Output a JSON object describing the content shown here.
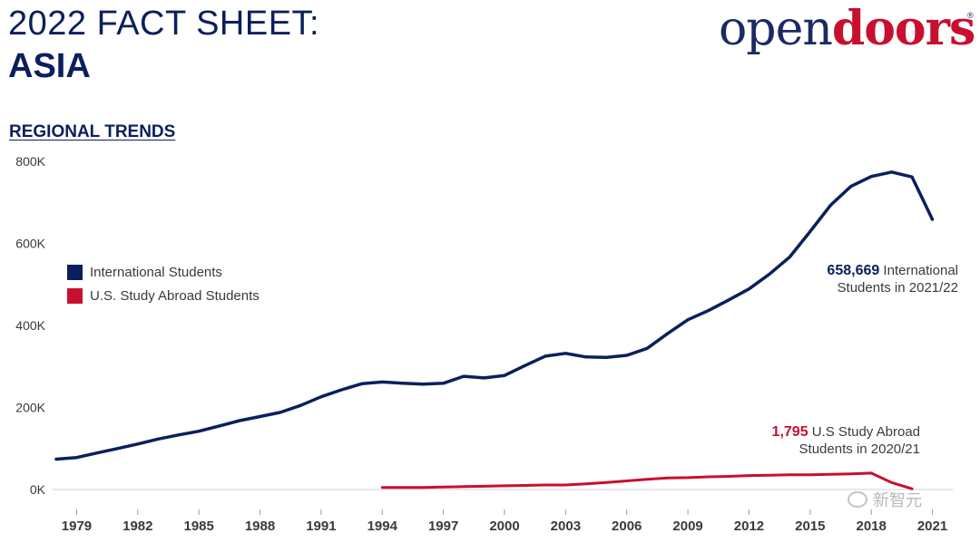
{
  "header": {
    "title_line1": "2022 FACT SHEET:",
    "title_line2": "ASIA"
  },
  "logo": {
    "part1": "open",
    "part2": "doors",
    "mark": "®"
  },
  "section": {
    "heading": "REGIONAL TRENDS"
  },
  "annotations": {
    "intl_value": "658,669",
    "intl_line1": " International",
    "intl_line2": "Students in 2021/22",
    "abroad_value": "1,795",
    "abroad_line1": " U.S Study Abroad",
    "abroad_line2": "Students in 2020/21"
  },
  "watermark": {
    "text": "新智元"
  },
  "colors": {
    "navy": "#0b1f5c",
    "red": "#c8102e"
  },
  "chart_data": {
    "type": "line",
    "title": "",
    "xlabel": "",
    "ylabel": "",
    "ylim": [
      0,
      800000
    ],
    "xlim": [
      1978,
      2022
    ],
    "ytick_values": [
      0,
      200000,
      400000,
      600000,
      800000
    ],
    "ytick_labels": [
      "0K",
      "200K",
      "400K",
      "600K",
      "800K"
    ],
    "xtick_values": [
      1979,
      1982,
      1985,
      1988,
      1991,
      1994,
      1997,
      2000,
      2003,
      2006,
      2009,
      2012,
      2015,
      2018,
      2021
    ],
    "xtick_labels": [
      "1979",
      "1982",
      "1985",
      "1988",
      "1991",
      "1994",
      "1997",
      "2000",
      "2003",
      "2006",
      "2009",
      "2012",
      "2015",
      "2018",
      "2021"
    ],
    "grid": false,
    "legend_position": "left",
    "series": [
      {
        "name": "International Students",
        "color": "#0b1f5c",
        "x": [
          1978,
          1979,
          1980,
          1981,
          1982,
          1983,
          1984,
          1985,
          1986,
          1987,
          1988,
          1989,
          1990,
          1991,
          1992,
          1993,
          1994,
          1995,
          1996,
          1997,
          1998,
          1999,
          2000,
          2001,
          2002,
          2003,
          2004,
          2005,
          2006,
          2007,
          2008,
          2009,
          2010,
          2011,
          2012,
          2013,
          2014,
          2015,
          2016,
          2017,
          2018,
          2019,
          2020,
          2021
        ],
        "values": [
          74000,
          78000,
          89000,
          100000,
          111000,
          123000,
          133000,
          142000,
          155000,
          168000,
          178000,
          188000,
          205000,
          226000,
          243000,
          258000,
          262000,
          259000,
          257000,
          259000,
          276000,
          272000,
          278000,
          302000,
          325000,
          332000,
          323000,
          322000,
          327000,
          344000,
          380000,
          414000,
          436000,
          462000,
          489000,
          525000,
          567000,
          629000,
          693000,
          739000,
          763000,
          774000,
          762000,
          658669
        ]
      },
      {
        "name": "U.S. Study Abroad Students",
        "color": "#c8102e",
        "x": [
          1994,
          1995,
          1996,
          1997,
          1998,
          1999,
          2000,
          2001,
          2002,
          2003,
          2004,
          2005,
          2006,
          2007,
          2008,
          2009,
          2010,
          2011,
          2012,
          2013,
          2014,
          2015,
          2016,
          2017,
          2018,
          2019,
          2020
        ],
        "values": [
          5000,
          5000,
          5000,
          6000,
          7000,
          8000,
          9000,
          10000,
          11000,
          11000,
          14000,
          17000,
          21000,
          25000,
          28000,
          29000,
          31000,
          32000,
          34000,
          35000,
          36000,
          36000,
          37000,
          38000,
          40000,
          17000,
          1795
        ]
      }
    ]
  }
}
